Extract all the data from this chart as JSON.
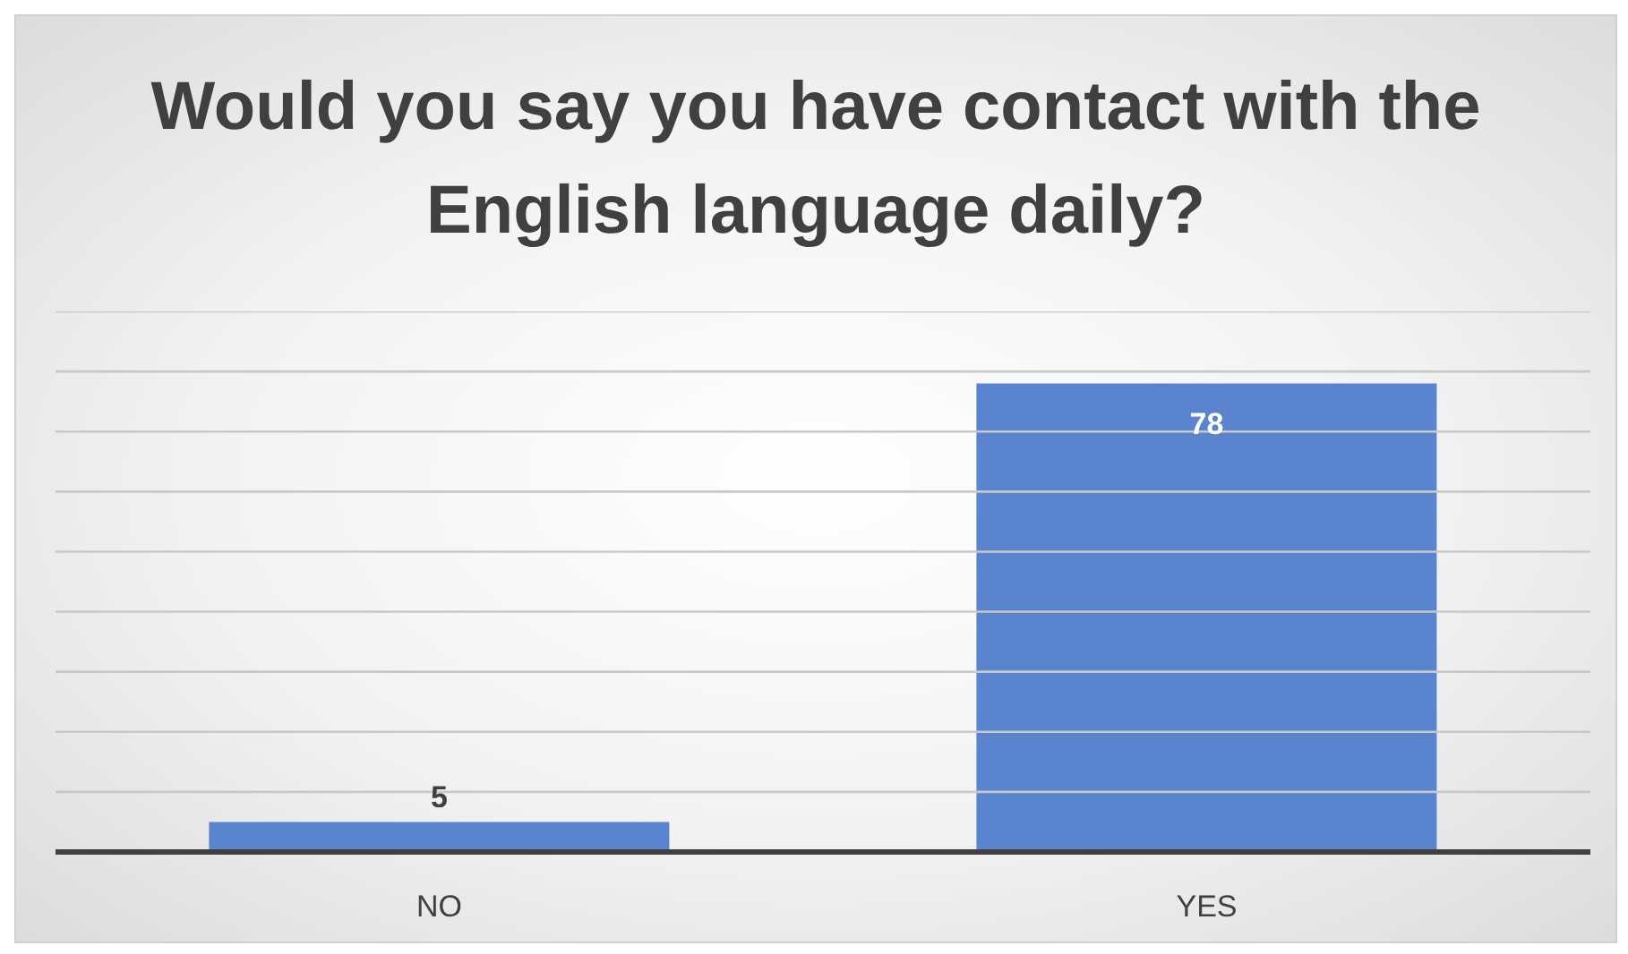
{
  "chart_data": {
    "type": "bar",
    "title": "Would you say you have contact with the English language daily?",
    "categories": [
      "NO",
      "YES"
    ],
    "values": [
      5,
      78
    ],
    "color": "#5b84cf",
    "ylim": [
      0,
      90
    ],
    "yticks": [
      {
        "value": 0,
        "label": null
      },
      {
        "value": 10,
        "label": null
      },
      {
        "value": 20,
        "label": null
      },
      {
        "value": 30,
        "label": null
      },
      {
        "value": 40,
        "label": null
      },
      {
        "value": 50,
        "label": null
      },
      {
        "value": 60,
        "label": null
      },
      {
        "value": 70,
        "label": null
      },
      {
        "value": 80,
        "label": null
      },
      {
        "value": 90,
        "label": null
      }
    ],
    "tick_labels": "x",
    "grid": "y",
    "data_labels": true
  }
}
